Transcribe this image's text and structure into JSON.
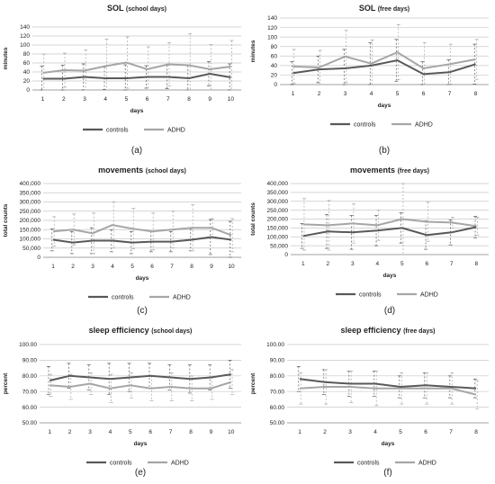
{
  "colors": {
    "controls": "#595959",
    "adhd": "#a6a6a6",
    "grid": "#c8c8c8",
    "axis": "#808080",
    "text": "#222222"
  },
  "chart_data": [
    {
      "id": "a",
      "type": "line",
      "title": "SOL",
      "title_suffix": "(school days)",
      "xlabel": "days",
      "ylabel": "minutes",
      "x": [
        1,
        2,
        3,
        4,
        5,
        6,
        7,
        8,
        9,
        10
      ],
      "ylim": [
        0,
        140
      ],
      "yticks": [
        0,
        20,
        40,
        60,
        80,
        100,
        120,
        140
      ],
      "ytick_labels": [
        "0",
        "20",
        "40",
        "60",
        "80",
        "100",
        "120",
        "140"
      ],
      "series": [
        {
          "name": "controls",
          "values": [
            25,
            25,
            29,
            26,
            26,
            29,
            29,
            26,
            36,
            28
          ],
          "err": [
            28,
            30,
            29,
            25,
            30,
            25,
            26,
            28,
            27,
            30
          ]
        },
        {
          "name": "ADHD",
          "values": [
            38,
            44,
            43,
            53,
            61,
            46,
            57,
            55,
            46,
            52
          ],
          "err": [
            42,
            38,
            46,
            60,
            57,
            50,
            48,
            70,
            55,
            58
          ]
        }
      ],
      "legend": [
        "controls",
        "ADHD"
      ],
      "caption": "(a)",
      "grid": true
    },
    {
      "id": "b",
      "type": "line",
      "title": "SOL",
      "title_suffix": "(free days)",
      "xlabel": "days",
      "ylabel": "minutes",
      "x": [
        1,
        2,
        3,
        4,
        5,
        6,
        7,
        8
      ],
      "ylim": [
        0,
        140
      ],
      "yticks": [
        0,
        20,
        40,
        60,
        80,
        100,
        120,
        140
      ],
      "ytick_labels": [
        "0",
        "20",
        "40",
        "60",
        "80",
        "100",
        "120",
        "140"
      ],
      "series": [
        {
          "name": "controls",
          "values": [
            24,
            32,
            34,
            40,
            51,
            22,
            26,
            43
          ],
          "err": [
            24,
            28,
            40,
            48,
            44,
            26,
            26,
            42
          ]
        },
        {
          "name": "ADHD",
          "values": [
            38,
            36,
            59,
            44,
            68,
            34,
            43,
            53
          ],
          "err": [
            36,
            36,
            55,
            50,
            58,
            54,
            42,
            42
          ]
        }
      ],
      "legend": [
        "controls",
        "ADHD"
      ],
      "caption": "(b)",
      "grid": true
    },
    {
      "id": "c",
      "type": "line",
      "title": "movements",
      "title_suffix": "(school days)",
      "xlabel": "days",
      "ylabel": "total counts",
      "x": [
        1,
        2,
        3,
        4,
        5,
        6,
        7,
        8,
        9,
        10
      ],
      "ylim": [
        0,
        400000
      ],
      "yticks": [
        0,
        50000,
        100000,
        150000,
        200000,
        250000,
        300000,
        350000,
        400000
      ],
      "ytick_labels": [
        "0",
        "50,000",
        "100,000",
        "150,000",
        "200,000",
        "250,000",
        "300,000",
        "350,000",
        "400,000"
      ],
      "series": [
        {
          "name": "controls",
          "values": [
            95000,
            80000,
            90000,
            90000,
            80000,
            85000,
            85000,
            95000,
            110000,
            95000
          ],
          "err": [
            60000,
            60000,
            70000,
            60000,
            60000,
            55000,
            55000,
            60000,
            95000,
            100000
          ]
        },
        {
          "name": "ADHD",
          "values": [
            140000,
            150000,
            130000,
            175000,
            155000,
            140000,
            150000,
            160000,
            160000,
            120000
          ],
          "err": [
            80000,
            85000,
            110000,
            125000,
            110000,
            100000,
            100000,
            125000,
            50000,
            90000
          ]
        }
      ],
      "legend": [
        "controls",
        "ADHD"
      ],
      "caption": "(c)",
      "grid": true
    },
    {
      "id": "d",
      "type": "line",
      "title": "movements",
      "title_suffix": "(free days)",
      "xlabel": "days",
      "ylabel": "total counts",
      "x": [
        1,
        2,
        3,
        4,
        5,
        6,
        7,
        8
      ],
      "ylim": [
        0,
        400000
      ],
      "yticks": [
        0,
        50000,
        100000,
        150000,
        200000,
        250000,
        300000,
        350000,
        400000
      ],
      "ytick_labels": [
        "0",
        "50,000",
        "100,000",
        "150,000",
        "200,000",
        "250,000",
        "300,000",
        "350,000",
        "400,000"
      ],
      "series": [
        {
          "name": "controls",
          "values": [
            105000,
            130000,
            125000,
            135000,
            150000,
            110000,
            125000,
            155000
          ],
          "err": [
            70000,
            95000,
            95000,
            85000,
            85000,
            80000,
            70000,
            60000
          ]
        },
        {
          "name": "ADHD",
          "values": [
            170000,
            165000,
            175000,
            165000,
            200000,
            185000,
            180000,
            160000
          ],
          "err": [
            145000,
            140000,
            110000,
            85000,
            200000,
            110000,
            30000,
            50000
          ]
        }
      ],
      "legend": [
        "controls",
        "ADHD"
      ],
      "caption": "(d)",
      "grid": true
    },
    {
      "id": "e",
      "type": "line",
      "title": "sleep efficiency",
      "title_suffix": "(school days)",
      "xlabel": "days",
      "ylabel": "percent",
      "x": [
        1,
        2,
        3,
        4,
        5,
        6,
        7,
        8,
        9,
        10
      ],
      "ylim": [
        50,
        100
      ],
      "yticks": [
        50,
        60,
        70,
        80,
        90,
        100
      ],
      "ytick_labels": [
        "50.00",
        "60.00",
        "70.00",
        "80.00",
        "90.00",
        "100.00"
      ],
      "series": [
        {
          "name": "controls",
          "values": [
            77,
            80,
            79,
            78,
            79,
            80,
            79,
            78,
            79,
            81
          ],
          "err": [
            9,
            8,
            8,
            10,
            9,
            8,
            8,
            9,
            8,
            9
          ]
        },
        {
          "name": "ADHD",
          "values": [
            74,
            73,
            75,
            72,
            74,
            72,
            73,
            72,
            72,
            76
          ],
          "err": [
            7,
            8,
            7,
            9,
            8,
            8,
            9,
            8,
            7,
            8
          ]
        }
      ],
      "legend": [
        "controls",
        "ADHD"
      ],
      "caption": "(e)",
      "grid": true
    },
    {
      "id": "f",
      "type": "line",
      "title": "sleep efficiency",
      "title_suffix": "(free days)",
      "xlabel": "days",
      "ylabel": "percent",
      "x": [
        1,
        2,
        3,
        4,
        5,
        6,
        7,
        8
      ],
      "ylim": [
        50,
        100
      ],
      "yticks": [
        50,
        60,
        70,
        80,
        90,
        100
      ],
      "ytick_labels": [
        "50.00",
        "60.00",
        "70.00",
        "80.00",
        "90.00",
        "100.00"
      ],
      "series": [
        {
          "name": "controls",
          "values": [
            78,
            76,
            75,
            75,
            73,
            74,
            73,
            72
          ],
          "err": [
            8,
            8,
            8,
            8,
            7,
            8,
            7,
            6
          ]
        },
        {
          "name": "ADHD",
          "values": [
            72,
            73,
            73,
            72,
            72,
            72,
            72,
            68
          ],
          "err": [
            10,
            11,
            10,
            11,
            10,
            10,
            10,
            9
          ]
        }
      ],
      "legend": [
        "controls",
        "ADHD"
      ],
      "caption": "(f)",
      "grid": true
    }
  ]
}
